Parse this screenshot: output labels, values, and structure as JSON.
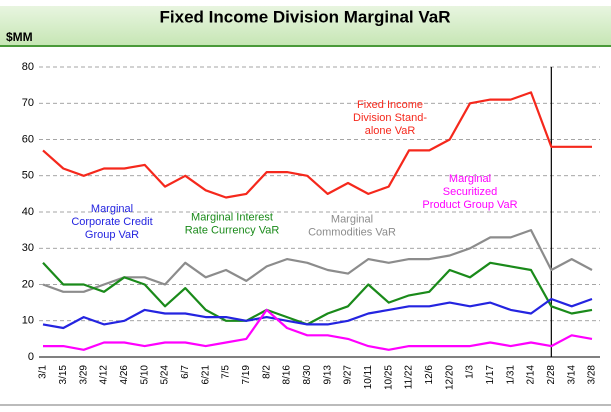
{
  "chart_data": {
    "type": "line",
    "title": "Fixed Income Division Marginal VaR",
    "y_unit": "$MM",
    "categories": [
      "3/1",
      "3/15",
      "3/29",
      "4/12",
      "4/26",
      "5/10",
      "5/24",
      "6/7",
      "6/21",
      "7/5",
      "7/19",
      "8/2",
      "8/16",
      "8/30",
      "9/13",
      "9/27",
      "10/11",
      "10/25",
      "11/22",
      "12/6",
      "12/20",
      "1/3",
      "1/17",
      "1/31",
      "2/14",
      "2/28",
      "3/14",
      "3/28"
    ],
    "series": [
      {
        "name": [
          "Fixed Income",
          "Division Stand-",
          "alone VaR"
        ],
        "color": "#f5281c",
        "values": [
          57,
          52,
          50,
          52,
          52,
          53,
          47,
          50,
          46,
          44,
          45,
          51,
          51,
          50,
          45,
          48,
          45,
          47,
          57,
          57,
          60,
          70,
          71,
          71,
          73,
          58,
          58,
          58
        ]
      },
      {
        "name": [
          "Marginal",
          "Commodities VaR"
        ],
        "color": "#8c8c8c",
        "values": [
          20,
          18,
          18,
          20,
          22,
          22,
          20,
          26,
          22,
          24,
          21,
          25,
          27,
          26,
          24,
          23,
          27,
          26,
          27,
          27,
          28,
          30,
          33,
          33,
          35,
          24,
          27,
          24
        ]
      },
      {
        "name": [
          "Marginal Interest",
          "Rate Currency VaR"
        ],
        "color": "#1a8a1a",
        "values": [
          26,
          20,
          20,
          18,
          22,
          20,
          14,
          19,
          13,
          10,
          10,
          13,
          11,
          9,
          12,
          14,
          20,
          15,
          17,
          18,
          24,
          22,
          26,
          25,
          24,
          14,
          12,
          13
        ]
      },
      {
        "name": [
          "Marginal",
          "Corporate Credit",
          "Group VaR"
        ],
        "color": "#2424e0",
        "values": [
          9,
          8,
          11,
          9,
          10,
          13,
          12,
          12,
          11,
          11,
          10,
          11,
          10,
          9,
          9,
          10,
          12,
          13,
          14,
          14,
          15,
          14,
          15,
          13,
          12,
          16,
          14,
          16
        ]
      },
      {
        "name": [
          "Marginal",
          "Securitized",
          "Product Group VaR"
        ],
        "color": "#ff00ff",
        "values": [
          3,
          3,
          2,
          4,
          4,
          3,
          4,
          4,
          3,
          4,
          5,
          13,
          8,
          6,
          6,
          5,
          3,
          2,
          3,
          3,
          3,
          3,
          4,
          3,
          4,
          3,
          6,
          5
        ]
      }
    ],
    "ylim": [
      0,
      80
    ],
    "yticks": [
      0,
      10,
      20,
      30,
      40,
      50,
      60,
      70,
      80
    ],
    "grid": true
  }
}
